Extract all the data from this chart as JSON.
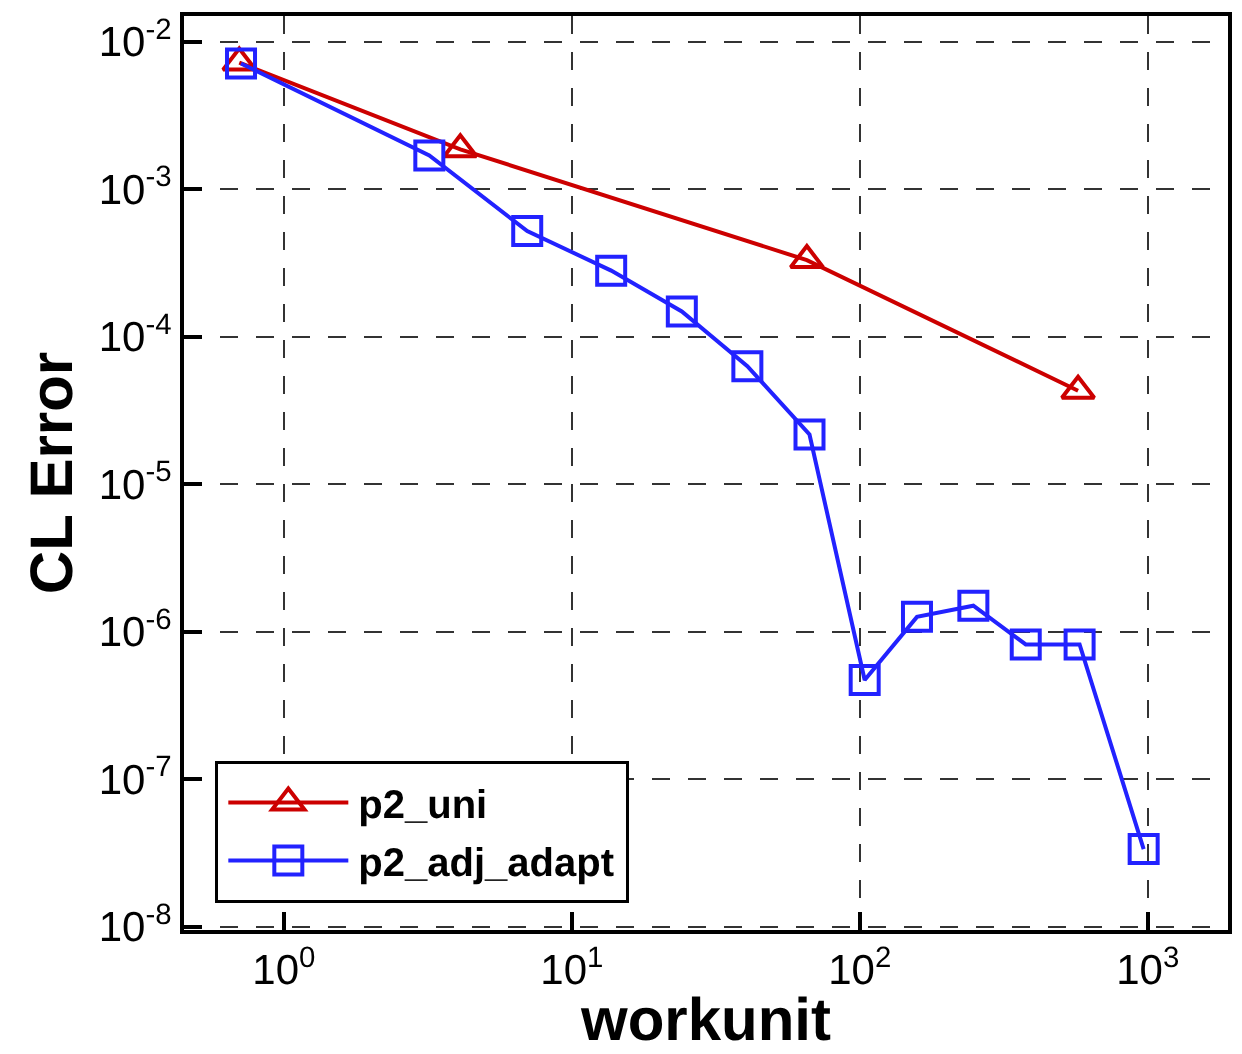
{
  "chart_data": {
    "type": "line",
    "xlabel": "workunit",
    "ylabel": "CL Error",
    "log": "xy",
    "grid": true,
    "legend": "bottom left",
    "line_style": "solid",
    "xlim": [
      0.45,
      1900
    ],
    "ylim": [
      9.5e-09,
      0.0149
    ],
    "xticks": [
      {
        "value": 1,
        "label": "10$^{0}$"
      },
      {
        "value": 10,
        "label": "10$^{1}$"
      },
      {
        "value": 100,
        "label": "10$^{2}$"
      },
      {
        "value": 1000,
        "label": "10$^{3}$"
      }
    ],
    "yticks": [
      {
        "value": 1e-08,
        "label": "10$^{-8}$"
      },
      {
        "value": 1e-07,
        "label": "10$^{-7}$"
      },
      {
        "value": 1e-06,
        "label": "10$^{-6}$"
      },
      {
        "value": 1e-05,
        "label": "10$^{-5}$"
      },
      {
        "value": 0.0001,
        "label": "10$^{-4}$"
      },
      {
        "value": 0.001,
        "label": "10$^{-3}$"
      },
      {
        "value": 0.01,
        "label": "10$^{-2}$"
      }
    ],
    "series": [
      {
        "name": "p2_uni",
        "color": "#cc0000",
        "marker": "triangle",
        "x": [
          0.7,
          4.1,
          65.5,
          573
        ],
        "values": [
          0.0072,
          0.00186,
          0.00033,
          4.3e-05
        ]
      },
      {
        "name": "p2_adj_adapt",
        "color": "#2222ff",
        "marker": "square",
        "x": [
          0.71,
          3.2,
          7.0,
          13.7,
          24.1,
          40.7,
          66.9,
          104,
          158,
          248,
          377,
          580,
          968
        ],
        "values": [
          0.0071,
          0.00169,
          0.00052,
          0.00028,
          0.000148,
          6.3e-05,
          2.17e-05,
          4.7e-07,
          1.26e-06,
          1.5e-06,
          8.2e-07,
          8.2e-07,
          3.36e-08
        ]
      }
    ]
  }
}
